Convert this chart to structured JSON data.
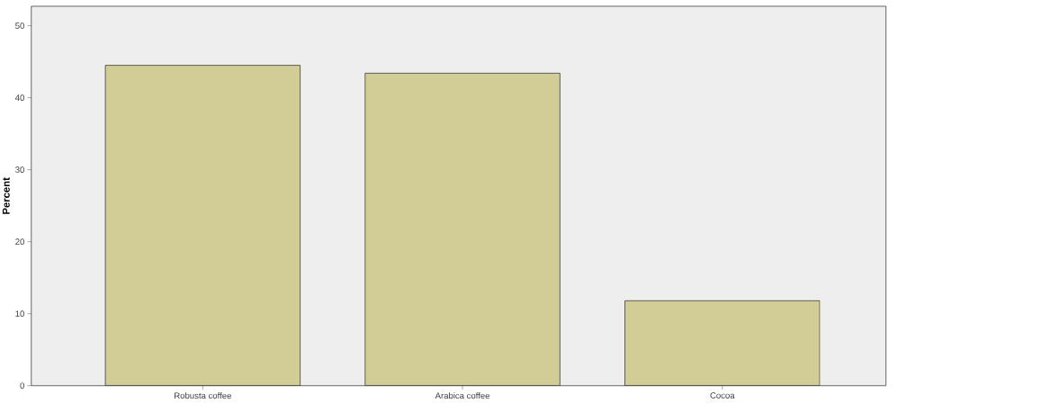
{
  "chart_data": {
    "type": "bar",
    "ylabel": "Percent",
    "categories": [
      "Robusta coffee",
      "Arabica coffee",
      "Cocoa"
    ],
    "values": [
      44.5,
      43.4,
      11.8
    ],
    "color": "#d2cd96",
    "ylim": [
      0,
      52.7
    ],
    "yticks": [
      0,
      10,
      20,
      30,
      40,
      50
    ],
    "grid": false
  }
}
